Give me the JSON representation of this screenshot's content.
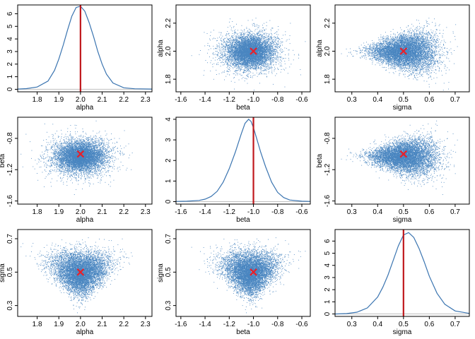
{
  "chart_data": {
    "type": "scatter",
    "layout": "3x3 pairs plot",
    "variables": [
      "alpha",
      "beta",
      "sigma"
    ],
    "true_values": {
      "alpha": 2.0,
      "beta": -1.0,
      "sigma": 0.5
    },
    "colors": {
      "points": "#4a86c0",
      "density": "#3a74b0",
      "true_line": "#c0181d",
      "true_marker": "#e8202a",
      "zero_line": "#bfbfbf"
    },
    "axes": {
      "alpha": {
        "lim": [
          1.71,
          2.33
        ],
        "ticks": [
          "1.8",
          "1.9",
          "2.0",
          "2.1",
          "2.2",
          "2.3"
        ],
        "tick_values": [
          1.8,
          1.9,
          2.0,
          2.1,
          2.2,
          2.3
        ],
        "label": "alpha"
      },
      "beta": {
        "lim": [
          -1.64,
          -0.53
        ],
        "ticks": [
          "-1.6",
          "-1.4",
          "-1.2",
          "-1.0",
          "-0.8",
          "-0.6"
        ],
        "tick_values": [
          -1.6,
          -1.4,
          -1.2,
          -1.0,
          -0.8,
          -0.6
        ],
        "label": "beta"
      },
      "sigma": {
        "lim": [
          0.235,
          0.755
        ],
        "ticks": [
          "0.3",
          "0.4",
          "0.5",
          "0.6",
          "0.7"
        ],
        "tick_values": [
          0.3,
          0.4,
          0.5,
          0.6,
          0.7
        ],
        "label": "sigma"
      }
    },
    "row_axes": {
      "alpha": {
        "lim": [
          1.71,
          2.33
        ],
        "ticks": [
          "1.8",
          "2.0",
          "2.2"
        ],
        "tick_values": [
          1.8,
          2.0,
          2.2
        ]
      },
      "beta": {
        "lim": [
          -1.64,
          -0.53
        ],
        "ticks": [
          "-1.6",
          "-1.2",
          "-0.8"
        ],
        "tick_values": [
          -1.6,
          -1.2,
          -0.8
        ]
      },
      "sigma": {
        "lim": [
          0.235,
          0.755
        ],
        "ticks": [
          "0.3",
          "0.5",
          "0.7"
        ],
        "tick_values": [
          0.3,
          0.5,
          0.7
        ]
      }
    },
    "density_axes": {
      "alpha": {
        "lim": [
          -0.2,
          6.7
        ],
        "ticks": [
          "0",
          "1",
          "2",
          "3",
          "4",
          "5",
          "6"
        ],
        "tick_values": [
          0,
          1,
          2,
          3,
          4,
          5,
          6
        ]
      },
      "beta": {
        "lim": [
          -0.12,
          4.1
        ],
        "ticks": [
          "0",
          "1",
          "2",
          "3",
          "4"
        ],
        "tick_values": [
          0,
          1,
          2,
          3,
          4
        ]
      },
      "sigma": {
        "lim": [
          -0.2,
          6.95
        ],
        "ticks": [
          "0",
          "1",
          "2",
          "3",
          "4",
          "5",
          "6"
        ],
        "tick_values": [
          0,
          1,
          2,
          3,
          4,
          5,
          6
        ]
      }
    },
    "densities": {
      "alpha": {
        "x": [
          1.71,
          1.75,
          1.8,
          1.85,
          1.88,
          1.9,
          1.92,
          1.94,
          1.96,
          1.98,
          2.0,
          2.02,
          2.04,
          2.06,
          2.08,
          2.1,
          2.12,
          2.15,
          2.2,
          2.25,
          2.33
        ],
        "y": [
          0.02,
          0.05,
          0.18,
          0.65,
          1.5,
          2.4,
          3.5,
          4.7,
          5.8,
          6.5,
          6.6,
          6.2,
          5.3,
          4.2,
          3.0,
          2.0,
          1.2,
          0.5,
          0.12,
          0.04,
          0.02
        ]
      },
      "beta": {
        "x": [
          -1.64,
          -1.55,
          -1.45,
          -1.4,
          -1.35,
          -1.3,
          -1.25,
          -1.2,
          -1.15,
          -1.1,
          -1.07,
          -1.04,
          -1.02,
          -1.0,
          -0.97,
          -0.94,
          -0.9,
          -0.85,
          -0.8,
          -0.75,
          -0.7,
          -0.6,
          -0.53
        ],
        "y": [
          0.01,
          0.02,
          0.06,
          0.12,
          0.25,
          0.5,
          0.95,
          1.6,
          2.4,
          3.3,
          3.8,
          4.0,
          3.9,
          3.6,
          3.0,
          2.4,
          1.7,
          0.95,
          0.45,
          0.2,
          0.08,
          0.02,
          0.01
        ]
      },
      "sigma": {
        "x": [
          0.235,
          0.28,
          0.32,
          0.36,
          0.4,
          0.42,
          0.44,
          0.46,
          0.48,
          0.5,
          0.52,
          0.54,
          0.56,
          0.58,
          0.6,
          0.63,
          0.66,
          0.7,
          0.755
        ],
        "y": [
          0.0,
          0.03,
          0.15,
          0.5,
          1.4,
          2.2,
          3.2,
          4.4,
          5.6,
          6.5,
          6.7,
          6.3,
          5.4,
          4.3,
          3.1,
          1.7,
          0.8,
          0.25,
          0.05
        ]
      }
    },
    "samples": {
      "n": 7000,
      "alpha": {
        "mean": 2.0,
        "sd": 0.062
      },
      "beta": {
        "mean": -1.03,
        "sd": 0.105
      },
      "sigma": {
        "mean": 0.505,
        "sd": 0.062
      }
    }
  }
}
